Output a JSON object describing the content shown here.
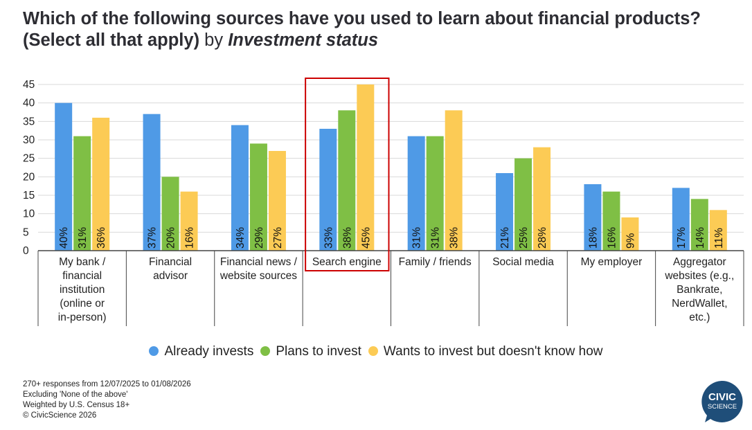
{
  "title": {
    "main": "Which of the following sources have you used to learn about financial products? (Select all that apply)",
    "by": "by",
    "status": "Investment status"
  },
  "notes": [
    "270+ responses from 12/07/2025 to 01/08/2026",
    "Excluding 'None of the above'",
    "Weighted by U.S. Census 18+",
    "© CivicScience 2026"
  ],
  "logo": {
    "line1": "CIVIC",
    "line2": "SCIENCE",
    "color": "#1f4e79"
  },
  "chart_data": {
    "type": "bar",
    "ylim": [
      0,
      45
    ],
    "yticks": [
      0,
      5,
      10,
      15,
      20,
      25,
      30,
      35,
      40,
      45
    ],
    "grid": true,
    "legend_position": "bottom",
    "highlighted_category": 3,
    "highlight_color": "#cc0000",
    "categories": [
      [
        "My bank /",
        "financial",
        "institution",
        "(online or",
        "in-person)"
      ],
      [
        "Financial",
        "advisor"
      ],
      [
        "Financial news /",
        "website sources"
      ],
      [
        "Search engine"
      ],
      [
        "Family / friends"
      ],
      [
        "Social media"
      ],
      [
        "My employer"
      ],
      [
        "Aggregator",
        "websites (e.g.,",
        "Bankrate,",
        "NerdWallet,",
        "etc.)"
      ]
    ],
    "series": [
      {
        "name": "Already invests",
        "color": "#4f9ae6",
        "values": [
          40,
          37,
          34,
          33,
          31,
          21,
          18,
          17
        ],
        "labels": [
          "40%",
          "37%",
          "34%",
          "33%",
          "31%",
          "21%",
          "18%",
          "17%"
        ]
      },
      {
        "name": "Plans to invest",
        "color": "#7fbf45",
        "values": [
          31,
          20,
          29,
          38,
          31,
          25,
          16,
          14
        ],
        "labels": [
          "31%",
          "20%",
          "29%",
          "38%",
          "31%",
          "25%",
          "16%",
          "14%"
        ]
      },
      {
        "name": "Wants to invest but doesn't know how",
        "color": "#fccb55",
        "values": [
          36,
          16,
          27,
          45,
          38,
          28,
          9,
          11
        ],
        "labels": [
          "36%",
          "16%",
          "27%",
          "45%",
          "38%",
          "28%",
          "9%",
          "11%"
        ]
      }
    ]
  }
}
